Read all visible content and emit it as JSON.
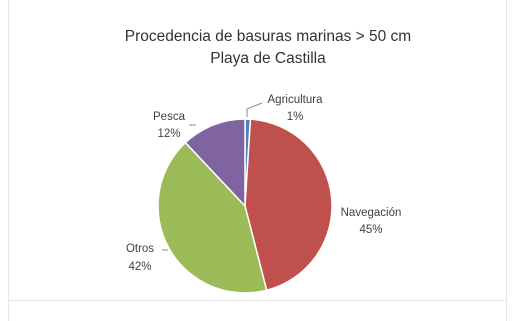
{
  "chart_data": {
    "type": "pie",
    "title": "Procedencia de basuras marinas > 50 cm",
    "subtitle": "Playa de Castilla",
    "categories": [
      "Agricultura",
      "Navegación",
      "Otros",
      "Pesca"
    ],
    "values": [
      1,
      45,
      42,
      12
    ],
    "value_labels": [
      "1%",
      "45%",
      "42%",
      "12%"
    ],
    "colors": [
      "#4f81bd",
      "#c0504d",
      "#9bbb59",
      "#8064a2"
    ],
    "legend": "none",
    "data_labels": "outside"
  }
}
